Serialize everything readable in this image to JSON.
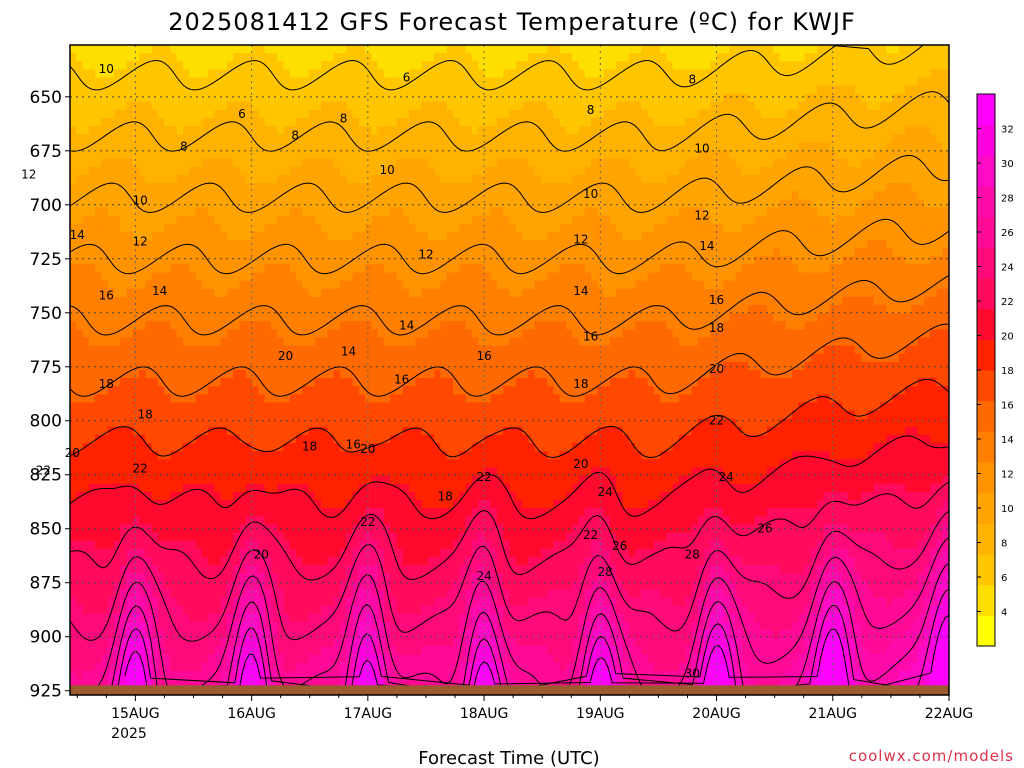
{
  "chart_data": {
    "type": "heatmap",
    "title": "2025081412 GFS Forecast Temperature (ºC) for KWJF",
    "xlabel": "Forecast Time (UTC)",
    "ylabel": "",
    "x_ticks": [
      "15AUG",
      "16AUG",
      "17AUG",
      "18AUG",
      "19AUG",
      "20AUG",
      "21AUG",
      "22AUG"
    ],
    "x_tick_year": "2025",
    "x_range_hours_from_15AUG00": [
      -13.5,
      168
    ],
    "y_ticks": [
      650,
      675,
      700,
      725,
      750,
      775,
      800,
      825,
      850,
      875,
      900,
      925
    ],
    "y_range_hPa": [
      626,
      927
    ],
    "colorbar": {
      "ticks": [
        4,
        6,
        8,
        10,
        12,
        14,
        16,
        18,
        20,
        22,
        24,
        26,
        28,
        30,
        32
      ],
      "range": [
        2,
        34
      ],
      "colors": [
        "#ffff00",
        "#ffdf00",
        "#ffc600",
        "#ffb300",
        "#ffa400",
        "#ff9300",
        "#ff7f00",
        "#ff6a00",
        "#ff4800",
        "#ff2200",
        "#ff0a2e",
        "#ff0a5c",
        "#ff0a7a",
        "#ff0a96",
        "#ff0aab",
        "#ff0ac5",
        "#ff00de",
        "#ff00ff"
      ]
    },
    "contour_labels": [
      {
        "t": -6,
        "p": 742,
        "text": "16"
      },
      {
        "t": -6,
        "p": 783,
        "text": "18"
      },
      {
        "t": -13,
        "p": 815,
        "text": "20"
      },
      {
        "t": -19,
        "p": 823,
        "text": "22"
      },
      {
        "t": -22,
        "p": 686,
        "text": "12"
      },
      {
        "t": -12,
        "p": 714,
        "text": "14"
      },
      {
        "t": -6,
        "p": 637,
        "text": "10"
      },
      {
        "t": 22,
        "p": 658,
        "text": "6"
      },
      {
        "t": 10,
        "p": 673,
        "text": "8"
      },
      {
        "t": 1,
        "p": 698,
        "text": "10"
      },
      {
        "t": 1,
        "p": 717,
        "text": "12"
      },
      {
        "t": 5,
        "p": 740,
        "text": "14"
      },
      {
        "t": 2,
        "p": 797,
        "text": "18"
      },
      {
        "t": 1,
        "p": 822,
        "text": "22"
      },
      {
        "t": 31,
        "p": 770,
        "text": "20"
      },
      {
        "t": 26,
        "p": 862,
        "text": "20"
      },
      {
        "t": 33,
        "p": 668,
        "text": "8"
      },
      {
        "t": 36,
        "p": 812,
        "text": "18"
      },
      {
        "t": 45,
        "p": 811,
        "text": "16"
      },
      {
        "t": 48,
        "p": 813,
        "text": "20"
      },
      {
        "t": 48,
        "p": 847,
        "text": "22"
      },
      {
        "t": 44,
        "p": 768,
        "text": "14"
      },
      {
        "t": 60,
        "p": 723,
        "text": "12"
      },
      {
        "t": 52,
        "p": 684,
        "text": "10"
      },
      {
        "t": 43,
        "p": 660,
        "text": "8"
      },
      {
        "t": 55,
        "p": 781,
        "text": "16"
      },
      {
        "t": 56,
        "p": 641,
        "text": "6"
      },
      {
        "t": 56,
        "p": 756,
        "text": "14"
      },
      {
        "t": 72,
        "p": 770,
        "text": "16"
      },
      {
        "t": 64,
        "p": 835,
        "text": "18"
      },
      {
        "t": 72,
        "p": 826,
        "text": "22"
      },
      {
        "t": 72,
        "p": 872,
        "text": "24"
      },
      {
        "t": 92,
        "p": 820,
        "text": "20"
      },
      {
        "t": 92,
        "p": 783,
        "text": "18"
      },
      {
        "t": 94,
        "p": 761,
        "text": "16"
      },
      {
        "t": 92,
        "p": 740,
        "text": "14"
      },
      {
        "t": 92,
        "p": 716,
        "text": "12"
      },
      {
        "t": 94,
        "p": 695,
        "text": "10"
      },
      {
        "t": 94,
        "p": 656,
        "text": "8"
      },
      {
        "t": 97,
        "p": 833,
        "text": "24"
      },
      {
        "t": 94,
        "p": 853,
        "text": "22"
      },
      {
        "t": 97,
        "p": 870,
        "text": "28"
      },
      {
        "t": 100,
        "p": 858,
        "text": "26"
      },
      {
        "t": 115,
        "p": 862,
        "text": "28"
      },
      {
        "t": 115,
        "p": 917,
        "text": "30"
      },
      {
        "t": 118,
        "p": 719,
        "text": "14"
      },
      {
        "t": 117,
        "p": 705,
        "text": "12"
      },
      {
        "t": 120,
        "p": 744,
        "text": "16"
      },
      {
        "t": 120,
        "p": 757,
        "text": "18"
      },
      {
        "t": 120,
        "p": 776,
        "text": "20"
      },
      {
        "t": 120,
        "p": 800,
        "text": "22"
      },
      {
        "t": 122,
        "p": 826,
        "text": "24"
      },
      {
        "t": 130,
        "p": 850,
        "text": "26"
      },
      {
        "t": 117,
        "p": 674,
        "text": "10"
      },
      {
        "t": 115,
        "p": 642,
        "text": "8"
      }
    ]
  }
}
